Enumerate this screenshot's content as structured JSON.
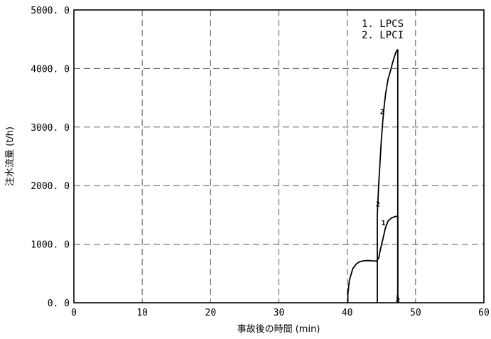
{
  "chart_data": {
    "type": "line",
    "xlabel": "事故後の時間 (min)",
    "ylabel": "注水流量 (t/h)",
    "xlim": [
      0,
      60
    ],
    "ylim": [
      0,
      5000
    ],
    "x_ticks": [
      0,
      10,
      20,
      30,
      40,
      50,
      60
    ],
    "x_tick_labels": [
      "0",
      "10",
      "20",
      "30",
      "40",
      "50",
      "60"
    ],
    "y_ticks": [
      0,
      1000,
      2000,
      3000,
      4000,
      5000
    ],
    "y_tick_labels": [
      "0. 0",
      "1000. 0",
      "2000. 0",
      "3000. 0",
      "4000. 0",
      "5000. 0"
    ],
    "grid": true,
    "legend": [
      "1. LPCS",
      "2. LPCI"
    ],
    "legend_position": "top-right",
    "series": [
      {
        "name": "1. LPCS",
        "marker": "1",
        "x": [
          40.1,
          40.1,
          40.3,
          40.8,
          41.3,
          41.8,
          42.3,
          42.8,
          43.3,
          43.8,
          44.3,
          44.6,
          44.8,
          45.2,
          45.6,
          46.0,
          46.5,
          47.0,
          47.4,
          47.4
        ],
        "y": [
          0,
          150,
          380,
          580,
          660,
          700,
          715,
          720,
          720,
          715,
          712,
          760,
          880,
          1080,
          1280,
          1400,
          1450,
          1470,
          1480,
          0
        ],
        "marker_points": [
          [
            45.3,
            1370
          ],
          [
            47.4,
            90
          ]
        ]
      },
      {
        "name": "2. LPCI",
        "marker": "2",
        "x": [
          44.4,
          44.4,
          44.6,
          44.8,
          45.0,
          45.2,
          45.4,
          45.6,
          45.8,
          46.0,
          46.3,
          46.6,
          46.9,
          47.2,
          47.4,
          47.4
        ],
        "y": [
          0,
          1500,
          2000,
          2400,
          2800,
          3100,
          3350,
          3550,
          3700,
          3830,
          3950,
          4080,
          4200,
          4300,
          4320,
          0
        ],
        "marker_points": [
          [
            44.5,
            1690
          ],
          [
            45.1,
            3270
          ],
          [
            47.4,
            60
          ]
        ]
      }
    ]
  }
}
